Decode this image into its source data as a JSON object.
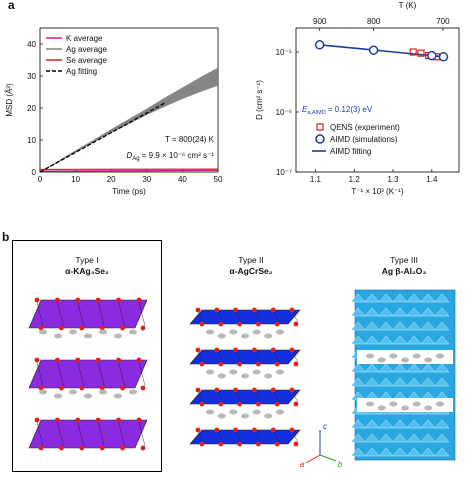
{
  "panel_labels": {
    "a": "a",
    "b": "b"
  },
  "chart_data": [
    {
      "type": "line",
      "xlabel": "Time (ps)",
      "ylabel": "MSD (Å²)",
      "xlim": [
        0,
        50
      ],
      "ylim": [
        0,
        45
      ],
      "xticks": [
        "0",
        "10",
        "20",
        "30",
        "40",
        "50"
      ],
      "yticks": [
        "0",
        "10",
        "20",
        "30",
        "40"
      ],
      "legend": [
        "K average",
        "Ag average",
        "Se average",
        "Ag fitting"
      ],
      "legend_position": "top-left",
      "series": [
        {
          "name": "K average",
          "color": "#e0109a",
          "x": [
            0,
            50
          ],
          "y": [
            0.3,
            0.5
          ]
        },
        {
          "name": "Ag average",
          "color": "#808080",
          "x": [
            0,
            5,
            10,
            15,
            20,
            25,
            30,
            35,
            40,
            45,
            50
          ],
          "y": [
            0,
            3.2,
            6.4,
            9.6,
            12.8,
            15.8,
            18.8,
            21.8,
            24.6,
            27.2,
            29.8
          ],
          "band_low": [
            0,
            3.0,
            6.0,
            9.2,
            12.2,
            15.0,
            17.8,
            20.4,
            22.8,
            25.0,
            27.0
          ],
          "band_high": [
            0,
            3.4,
            6.8,
            10.0,
            13.4,
            16.6,
            19.8,
            23.2,
            26.4,
            29.6,
            32.6
          ]
        },
        {
          "name": "Se average",
          "color": "#d42020",
          "x": [
            0,
            50
          ],
          "y": [
            0.8,
            0.9
          ]
        },
        {
          "name": "Ag fitting",
          "color": "#000000",
          "dashed": true,
          "x": [
            0,
            35
          ],
          "y": [
            0,
            21.5
          ]
        }
      ],
      "annotations": {
        "temp": "T = 800(24) K",
        "diff_label": "D",
        "diff_sub": "Ag",
        "diff_val": " = 9.9 × 10⁻⁶ cm² s⁻¹"
      }
    },
    {
      "type": "scatter",
      "xlabel": "T⁻¹ × 10³ (K⁻¹)",
      "ylabel": "D (cm² s⁻¹)",
      "top_axis_label": "T (K)",
      "top_ticks": [
        "900",
        "800",
        "700"
      ],
      "xlim": [
        1.05,
        1.47
      ],
      "ylim_log": [
        -7,
        -4.6
      ],
      "xticks": [
        "1.1",
        "1.2",
        "1.3",
        "1.4"
      ],
      "yticks": [
        "10⁻⁷",
        "10⁻⁶",
        "10⁻⁵"
      ],
      "legend": [
        "QENS (experiment)",
        "AIMD (simulations)",
        "AIMD fitting"
      ],
      "legend_position": "bottom-right",
      "qens": {
        "color": "#d42020",
        "x": [
          1.352,
          1.372,
          1.392,
          1.412
        ],
        "log_y": [
          -5.0,
          -5.02,
          -5.06,
          -5.08
        ]
      },
      "aimd": {
        "color": "#1a3fa0",
        "x": [
          1.111,
          1.25,
          1.4,
          1.43
        ],
        "log_y": [
          -4.88,
          -4.97,
          -5.06,
          -5.08
        ]
      },
      "fit": {
        "color": "#1a3fa0",
        "x": [
          1.111,
          1.43
        ],
        "log_y": [
          -4.88,
          -5.08
        ]
      },
      "annotations": {
        "ea_label": "E",
        "ea_sub": "a,AIMD",
        "ea_val": " = 0.12(3) eV"
      }
    }
  ],
  "structures": [
    {
      "type": "Type I",
      "formula": "α-KAg₃Se₂",
      "highlight": true
    },
    {
      "type": "Type II",
      "formula": "α-AgCrSe₂",
      "highlight": false
    },
    {
      "type": "Type III",
      "formula": "Ag β-Al₂O₃",
      "highlight": false
    }
  ],
  "axes_triad": {
    "c": "c",
    "a": "a",
    "b": "b"
  },
  "colors": {
    "purple": "#8a2be2",
    "blue": "#1230e0",
    "cyan": "#29a7e0",
    "silver": "#b8b8b8",
    "red_atom": "#e02020"
  }
}
